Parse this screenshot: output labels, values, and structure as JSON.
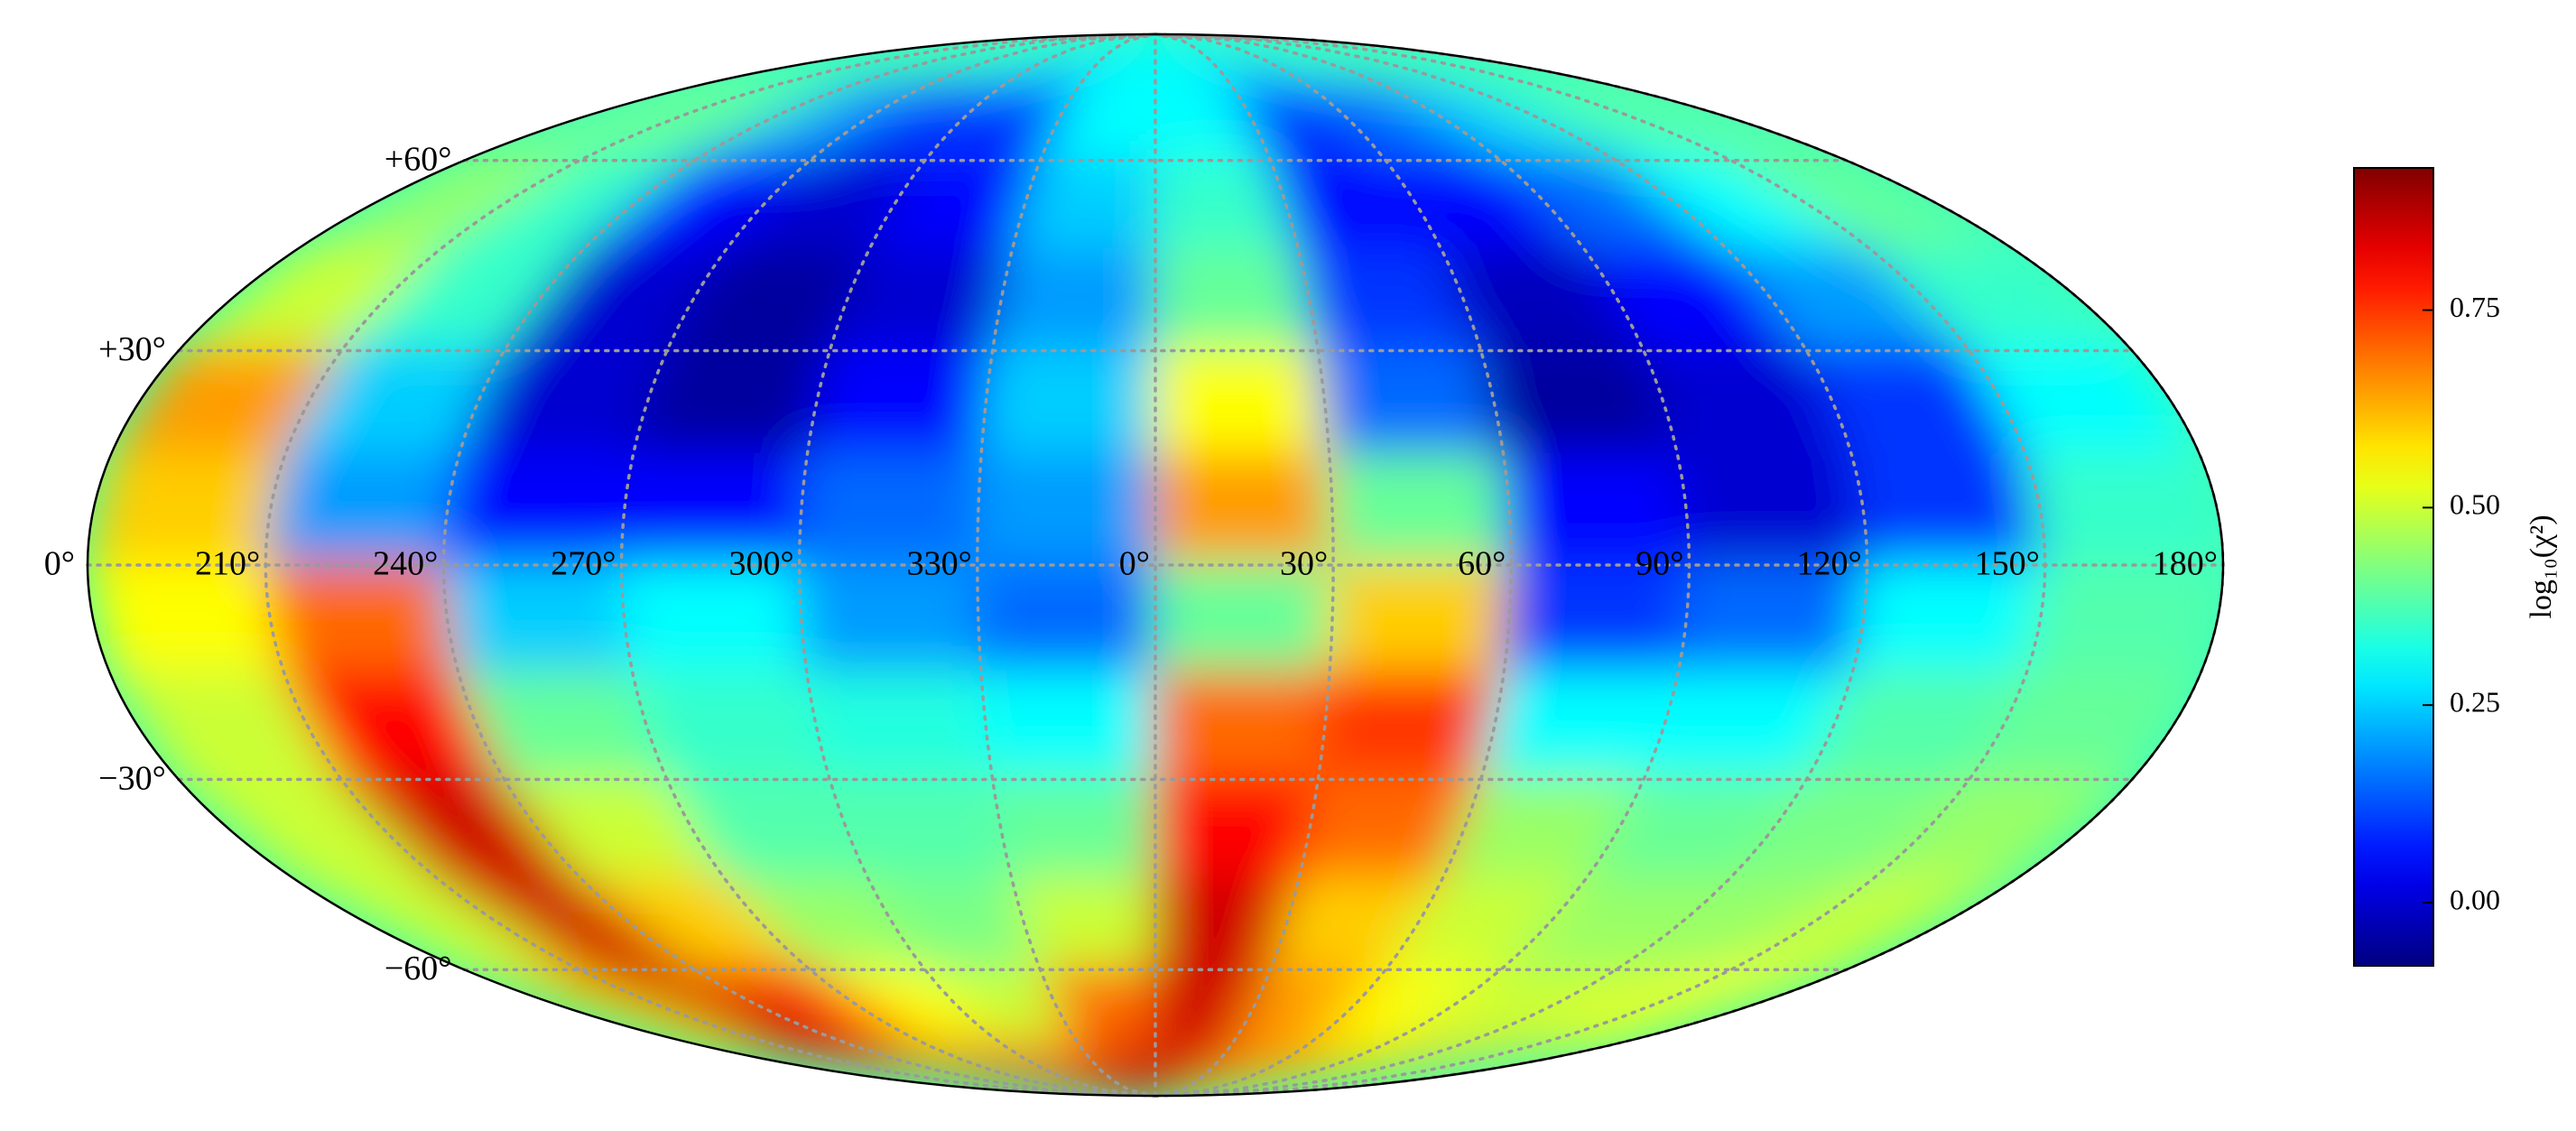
{
  "chart_data": {
    "type": "mollweide-heatmap",
    "colormap": "jet",
    "colorbar_label": "log₁₀(χ²)",
    "clim": [
      -0.08,
      0.93
    ],
    "cticks": [
      {
        "value": 0,
        "label": "0.00"
      },
      {
        "value": 0.25,
        "label": "0.25"
      },
      {
        "value": 0.5,
        "label": "0.50"
      },
      {
        "value": 0.75,
        "label": "0.75"
      }
    ],
    "xticks": [
      {
        "value": 210,
        "label": "210°"
      },
      {
        "value": 240,
        "label": "240°"
      },
      {
        "value": 270,
        "label": "270°"
      },
      {
        "value": 300,
        "label": "300°"
      },
      {
        "value": 330,
        "label": "330°"
      },
      {
        "value": 0,
        "label": "0°"
      },
      {
        "value": 30,
        "label": "30°"
      },
      {
        "value": 60,
        "label": "60°"
      },
      {
        "value": 90,
        "label": "90°"
      },
      {
        "value": 120,
        "label": "120°"
      },
      {
        "value": 150,
        "label": "150°"
      },
      {
        "value": 180,
        "label": "180°"
      }
    ],
    "yticks": [
      {
        "value": 60,
        "label": "+60°"
      },
      {
        "value": 30,
        "label": "+30°"
      },
      {
        "value": 0,
        "label": "0°"
      },
      {
        "value": -30,
        "label": "−30°"
      },
      {
        "value": -60,
        "label": "−60°"
      }
    ],
    "grid": true,
    "x": [
      195,
      225,
      255,
      285,
      315,
      345,
      15,
      45,
      75,
      105,
      135,
      165
    ],
    "y": [
      82.5,
      67.5,
      52.5,
      37.5,
      22.5,
      7.5,
      -7.5,
      -22.5,
      -37.5,
      -52.5,
      -67.5,
      -82.5
    ],
    "z": [
      [
        0.38,
        0.38,
        0.35,
        0.3,
        0.25,
        0.3,
        0.3,
        0.25,
        0.3,
        0.35,
        0.38,
        0.38
      ],
      [
        0.42,
        0.38,
        0.2,
        0.1,
        0.1,
        0.3,
        0.3,
        0.1,
        0.15,
        0.25,
        0.35,
        0.4
      ],
      [
        0.45,
        0.35,
        0.05,
        0.0,
        0.05,
        0.25,
        0.35,
        0.05,
        0.05,
        0.15,
        0.3,
        0.4
      ],
      [
        0.5,
        0.35,
        0.0,
        -0.05,
        0.0,
        0.2,
        0.4,
        0.1,
        -0.02,
        0.05,
        0.2,
        0.35
      ],
      [
        0.65,
        0.25,
        0.0,
        -0.05,
        0.05,
        0.25,
        0.55,
        0.15,
        -0.05,
        0.0,
        0.1,
        0.3
      ],
      [
        0.6,
        0.2,
        0.05,
        0.05,
        0.15,
        0.2,
        0.65,
        0.4,
        0.05,
        0.0,
        0.1,
        0.35
      ],
      [
        0.55,
        0.7,
        0.25,
        0.3,
        0.2,
        0.15,
        0.4,
        0.6,
        0.1,
        0.15,
        0.3,
        0.38
      ],
      [
        0.5,
        0.8,
        0.4,
        0.35,
        0.33,
        0.3,
        0.7,
        0.75,
        0.3,
        0.3,
        0.38,
        0.4
      ],
      [
        0.5,
        0.85,
        0.5,
        0.38,
        0.38,
        0.4,
        0.8,
        0.7,
        0.45,
        0.4,
        0.42,
        0.45
      ],
      [
        0.5,
        0.85,
        0.6,
        0.45,
        0.42,
        0.5,
        0.85,
        0.6,
        0.5,
        0.45,
        0.45,
        0.5
      ],
      [
        0.6,
        0.85,
        0.8,
        0.55,
        0.5,
        0.7,
        0.85,
        0.65,
        0.55,
        0.5,
        0.5,
        0.55
      ],
      [
        0.7,
        0.8,
        0.8,
        0.75,
        0.75,
        0.85,
        0.85,
        0.7,
        0.65,
        0.6,
        0.6,
        0.6
      ]
    ]
  }
}
